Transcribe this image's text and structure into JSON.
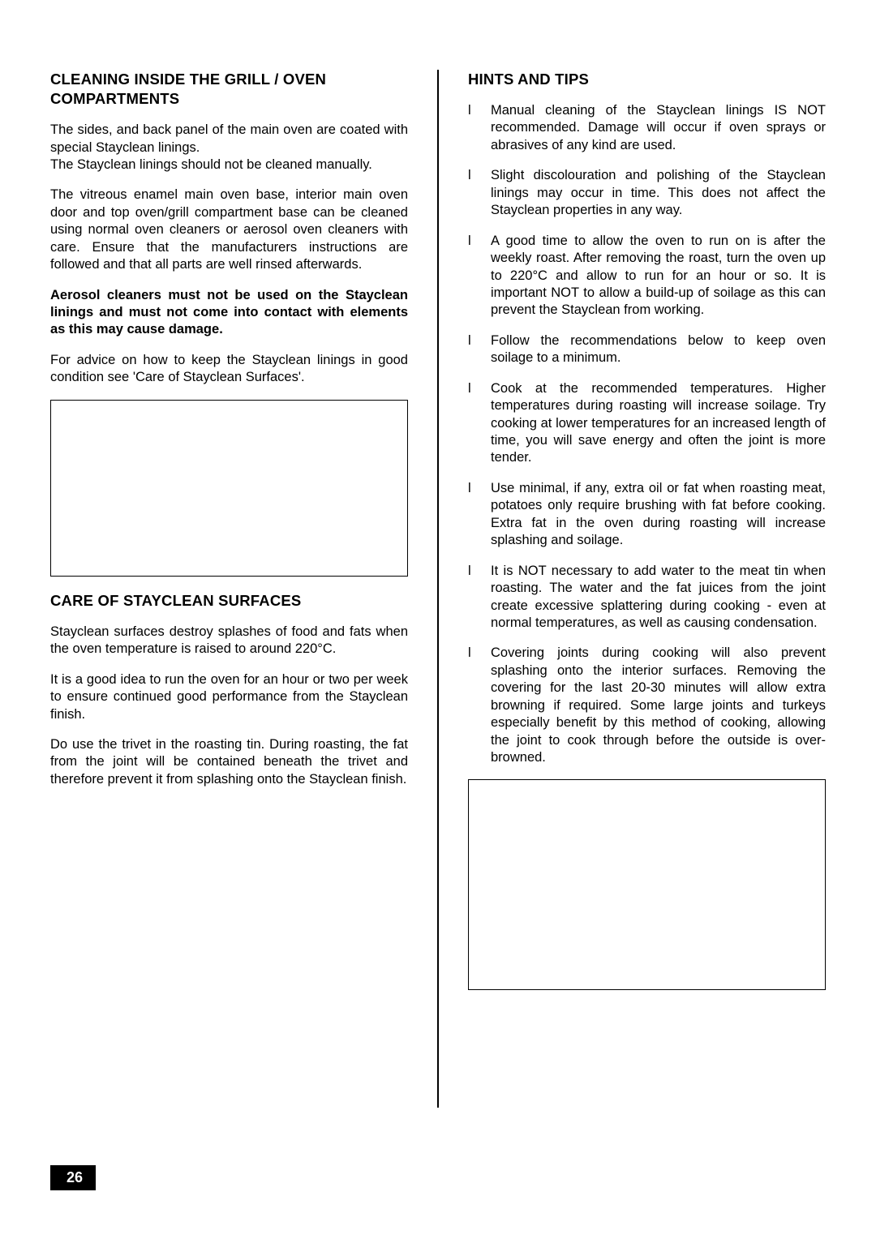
{
  "left": {
    "heading1": "CLEANING INSIDE THE GRILL / OVEN COMPARTMENTS",
    "p1": "The sides, and back panel of the main oven are coated with special Stayclean linings.",
    "p2": "The Stayclean linings should not be cleaned manually.",
    "p3": "The vitreous enamel main oven base, interior main oven door and top oven/grill compartment base can be cleaned using normal oven cleaners or aerosol oven cleaners with care. Ensure that the manufacturers instructions are followed and that all parts are well rinsed afterwards.",
    "p4": "Aerosol cleaners must not be used on the Stayclean linings and must not come into contact with elements as this may cause damage.",
    "p5": "For advice on how to keep the Stayclean linings in good condition see 'Care of Stayclean Surfaces'.",
    "heading2": "CARE OF  STAYCLEAN  SURFACES",
    "p6": "Stayclean surfaces destroy splashes of food and fats when the oven temperature is raised to around 220°C.",
    "p7": "It is a good idea to run the oven for an hour or two per week to ensure continued good performance from the Stayclean finish.",
    "p8": "Do use the trivet in the roasting tin. During roasting, the fat from the joint will be contained beneath the trivet and therefore prevent it from splashing onto the Stayclean finish."
  },
  "right": {
    "heading": "HINTS AND TIPS",
    "tips": [
      "Manual cleaning of the Stayclean linings IS NOT recommended. Damage will occur if oven sprays or abrasives of any kind are used.",
      "Slight discolouration and polishing of the Stayclean linings may occur in time. This does not affect the Stayclean properties in any way.",
      "A good time to allow the oven to run on is after the weekly roast.  After removing the roast, turn the oven up to 220°C and allow to run for an hour or so. It is important NOT to allow a build-up of soilage as this can prevent the Stayclean from working.",
      "Follow the recommendations below to keep oven soilage to a minimum.",
      "Cook at the recommended temperatures. Higher temperatures during roasting will increase soilage. Try cooking at lower temperatures for an increased length of time, you will save energy and often the joint is more tender.",
      "Use minimal, if any, extra oil or fat when roasting meat, potatoes only require brushing with fat before cooking. Extra fat in the oven during roasting will increase splashing and soilage.",
      "It is NOT necessary to add water to the meat tin when roasting.  The water and the fat juices from the joint create excessive splattering during cooking - even at normal temperatures, as well as causing condensation.",
      "Covering  joints during cooking will also prevent splashing onto the interior surfaces. Removing the covering for the last 20-30 minutes will allow extra browning if required.  Some large joints and turkeys especially benefit by this method of cooking, allowing the joint to cook through before the outside is over-browned."
    ]
  },
  "pageNumber": "26",
  "bulletChar": "l"
}
